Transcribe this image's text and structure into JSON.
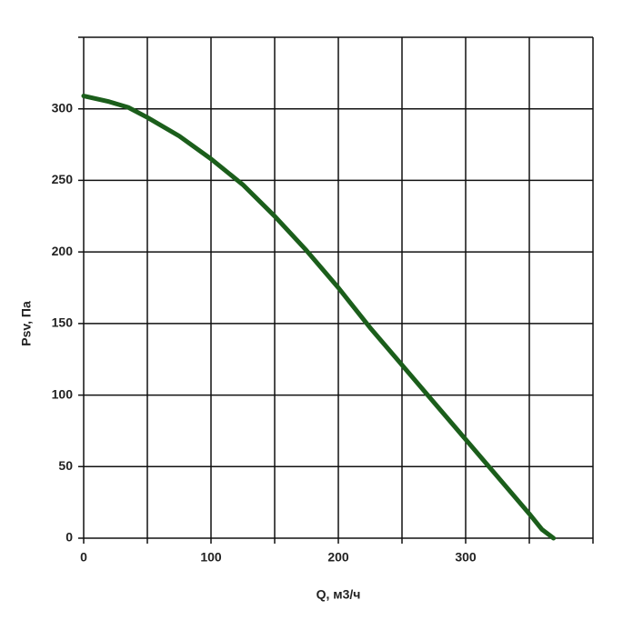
{
  "chart_data": {
    "type": "line",
    "x_label": "Q, м3/ч",
    "y_label": "Psv, Па",
    "series": [
      {
        "name": "Psv",
        "color": "#1b5e1b",
        "x": [
          0,
          20,
          35,
          50,
          75,
          100,
          125,
          150,
          175,
          200,
          225,
          250,
          275,
          300,
          325,
          350,
          360,
          369
        ],
        "values": [
          309,
          305,
          301,
          294,
          281,
          265,
          247,
          225,
          201,
          175,
          147,
          121,
          95,
          69,
          43,
          17,
          6,
          0
        ]
      }
    ],
    "xlim": [
      0,
      400
    ],
    "xticks": [
      0,
      100,
      200,
      300
    ],
    "xgrid": [
      0,
      50,
      100,
      150,
      200,
      250,
      300,
      350,
      400
    ],
    "ylim": [
      0,
      350
    ],
    "yticks": [
      0,
      50,
      100,
      150,
      200,
      250,
      300
    ],
    "ygrid": [
      0,
      50,
      100,
      150,
      200,
      250,
      300,
      350
    ],
    "grid": true
  }
}
